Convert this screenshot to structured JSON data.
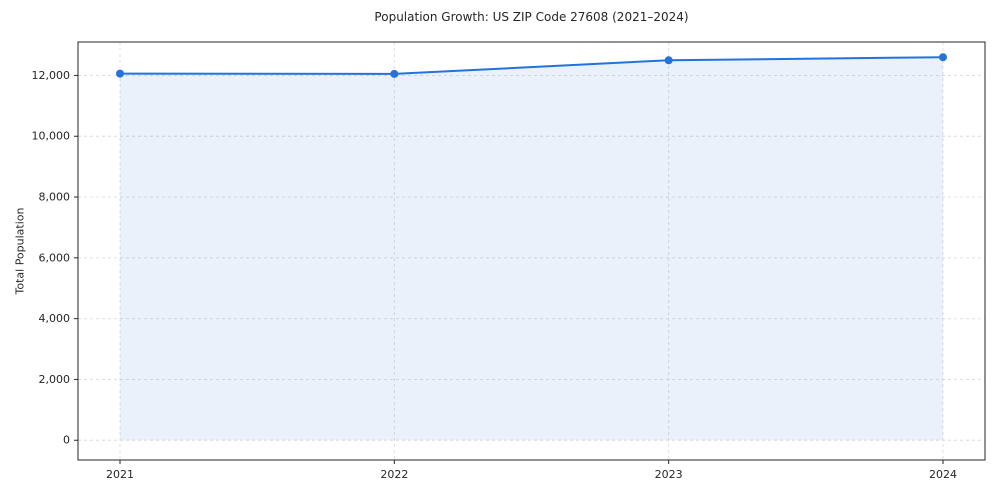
{
  "chart": {
    "title": "Population Growth: US ZIP Code 27608 (2021–2024)",
    "ylabel": "Total Population"
  },
  "chart_data": {
    "type": "area",
    "title": "Population Growth: US ZIP Code 27608 (2021–2024)",
    "xlabel": "",
    "ylabel": "Total Population",
    "x": [
      2021,
      2022,
      2023,
      2024
    ],
    "xticklabels": [
      "2021",
      "2022",
      "2023",
      "2024"
    ],
    "series": [
      {
        "name": "Total Population",
        "values": [
          12060,
          12050,
          12500,
          12600
        ]
      }
    ],
    "yticks": [
      0,
      2000,
      4000,
      6000,
      8000,
      10000,
      12000
    ],
    "ytick_labels": [
      "0",
      "2,000",
      "4,000",
      "6,000",
      "8,000",
      "10,000",
      "12,000"
    ],
    "ylim": [
      0,
      13100
    ],
    "grid": true,
    "legend_position": "none",
    "colors": {
      "line": "#2472db",
      "marker": "#2472db",
      "fill": "#2472db",
      "fill_opacity": 0.1,
      "grid": "#dcdcdc",
      "spine": "#262626",
      "text": "#262626"
    }
  }
}
